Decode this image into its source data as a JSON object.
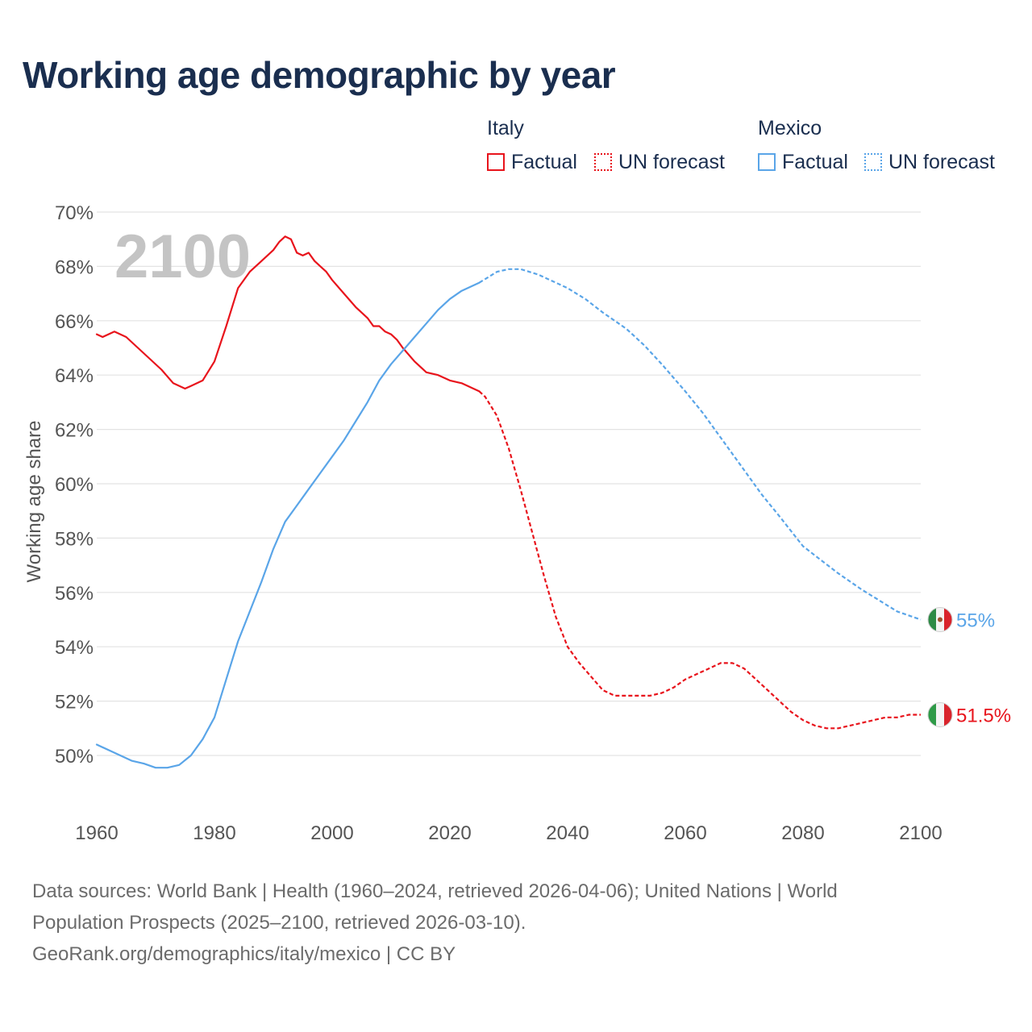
{
  "title": "Working age demographic by year",
  "legend": {
    "italy": {
      "name": "Italy",
      "factual": "Factual",
      "forecast": "UN forecast"
    },
    "mexico": {
      "name": "Mexico",
      "factual": "Factual",
      "forecast": "UN forecast"
    }
  },
  "footer": {
    "line1": "Data sources: World Bank | Health (1960–2024, retrieved 2026-04-06); United Nations | World",
    "line2": "Population Prospects (2025–2100, retrieved 2026-03-10).",
    "line3": "GeoRank.org/demographics/italy/mexico | CC BY"
  },
  "colors": {
    "italy": "#e8141c",
    "mexico": "#5aa5e8",
    "title": "#1a2e4f",
    "grid": "#e3e3e3",
    "axis_text": "#555555",
    "year_label": "#c4c4c4"
  },
  "chart_data": {
    "type": "line",
    "title": "Working age demographic by year",
    "xlabel": "",
    "ylabel": "Working age share",
    "xlim": [
      1960,
      2100
    ],
    "ylim": [
      48,
      70
    ],
    "x_ticks": [
      1960,
      1980,
      2000,
      2020,
      2040,
      2060,
      2080,
      2100
    ],
    "x_tick_labels": [
      "1960",
      "1980",
      "2000",
      "2020",
      "2040",
      "2060",
      "2080",
      "2100"
    ],
    "y_ticks": [
      50,
      52,
      54,
      56,
      58,
      60,
      62,
      64,
      66,
      68,
      70
    ],
    "y_tick_labels": [
      "50%",
      "52%",
      "54%",
      "56%",
      "58%",
      "60%",
      "62%",
      "64%",
      "66%",
      "68%",
      "70%"
    ],
    "year_label": "2100",
    "series": [
      {
        "name": "Italy",
        "kind": "Factual",
        "x": [
          1960,
          1961,
          1963,
          1965,
          1967,
          1969,
          1971,
          1973,
          1975,
          1976,
          1978,
          1980,
          1982,
          1984,
          1986,
          1988,
          1990,
          1991,
          1992,
          1993,
          1994,
          1995,
          1996,
          1997,
          1998,
          1999,
          2000,
          2002,
          2004,
          2006,
          2007,
          2008,
          2009,
          2010,
          2011,
          2012,
          2014,
          2016,
          2018,
          2020,
          2022,
          2024,
          2025
        ],
        "y": [
          65.5,
          65.4,
          65.6,
          65.4,
          65.0,
          64.6,
          64.2,
          63.7,
          63.5,
          63.6,
          63.8,
          64.5,
          65.8,
          67.2,
          67.8,
          68.2,
          68.6,
          68.9,
          69.1,
          69.0,
          68.5,
          68.4,
          68.5,
          68.2,
          68.0,
          67.8,
          67.5,
          67.0,
          66.5,
          66.1,
          65.8,
          65.8,
          65.6,
          65.5,
          65.3,
          65.0,
          64.5,
          64.1,
          64.0,
          63.8,
          63.7,
          63.5,
          63.4
        ]
      },
      {
        "name": "Italy",
        "kind": "UN forecast",
        "x": [
          2025,
          2026,
          2028,
          2030,
          2032,
          2034,
          2036,
          2038,
          2040,
          2042,
          2044,
          2046,
          2048,
          2050,
          2052,
          2054,
          2056,
          2058,
          2060,
          2062,
          2064,
          2066,
          2068,
          2070,
          2072,
          2074,
          2076,
          2078,
          2080,
          2082,
          2084,
          2086,
          2088,
          2090,
          2092,
          2094,
          2096,
          2098,
          2100
        ],
        "y": [
          63.4,
          63.2,
          62.5,
          61.3,
          59.8,
          58.2,
          56.6,
          55.1,
          54.0,
          53.4,
          52.9,
          52.4,
          52.2,
          52.2,
          52.2,
          52.2,
          52.3,
          52.5,
          52.8,
          53.0,
          53.2,
          53.4,
          53.4,
          53.2,
          52.8,
          52.4,
          52.0,
          51.6,
          51.3,
          51.1,
          51.0,
          51.0,
          51.1,
          51.2,
          51.3,
          51.4,
          51.4,
          51.5,
          51.5
        ]
      },
      {
        "name": "Mexico",
        "kind": "Factual",
        "x": [
          1960,
          1962,
          1964,
          1966,
          1968,
          1970,
          1972,
          1974,
          1976,
          1978,
          1980,
          1982,
          1984,
          1986,
          1988,
          1990,
          1992,
          1994,
          1996,
          1998,
          2000,
          2002,
          2004,
          2006,
          2008,
          2010,
          2012,
          2014,
          2016,
          2018,
          2020,
          2022,
          2024,
          2025
        ],
        "y": [
          50.4,
          50.2,
          50.0,
          49.8,
          49.7,
          49.55,
          49.55,
          49.65,
          50.0,
          50.6,
          51.4,
          52.8,
          54.2,
          55.3,
          56.4,
          57.6,
          58.6,
          59.2,
          59.8,
          60.4,
          61.0,
          61.6,
          62.3,
          63.0,
          63.8,
          64.4,
          64.9,
          65.4,
          65.9,
          66.4,
          66.8,
          67.1,
          67.3,
          67.4
        ]
      },
      {
        "name": "Mexico",
        "kind": "UN forecast",
        "x": [
          2025,
          2028,
          2030,
          2032,
          2035,
          2038,
          2040,
          2043,
          2046,
          2050,
          2053,
          2056,
          2060,
          2063,
          2066,
          2070,
          2073,
          2076,
          2080,
          2083,
          2086,
          2090,
          2093,
          2096,
          2100
        ],
        "y": [
          67.4,
          67.8,
          67.9,
          67.9,
          67.7,
          67.4,
          67.2,
          66.8,
          66.3,
          65.7,
          65.1,
          64.4,
          63.4,
          62.6,
          61.7,
          60.5,
          59.6,
          58.8,
          57.7,
          57.2,
          56.7,
          56.1,
          55.7,
          55.3,
          55.0
        ]
      }
    ],
    "end_labels": [
      {
        "series": "Mexico",
        "value": 55.0,
        "text": "55%"
      },
      {
        "series": "Italy",
        "value": 51.5,
        "text": "51.5%"
      }
    ]
  }
}
